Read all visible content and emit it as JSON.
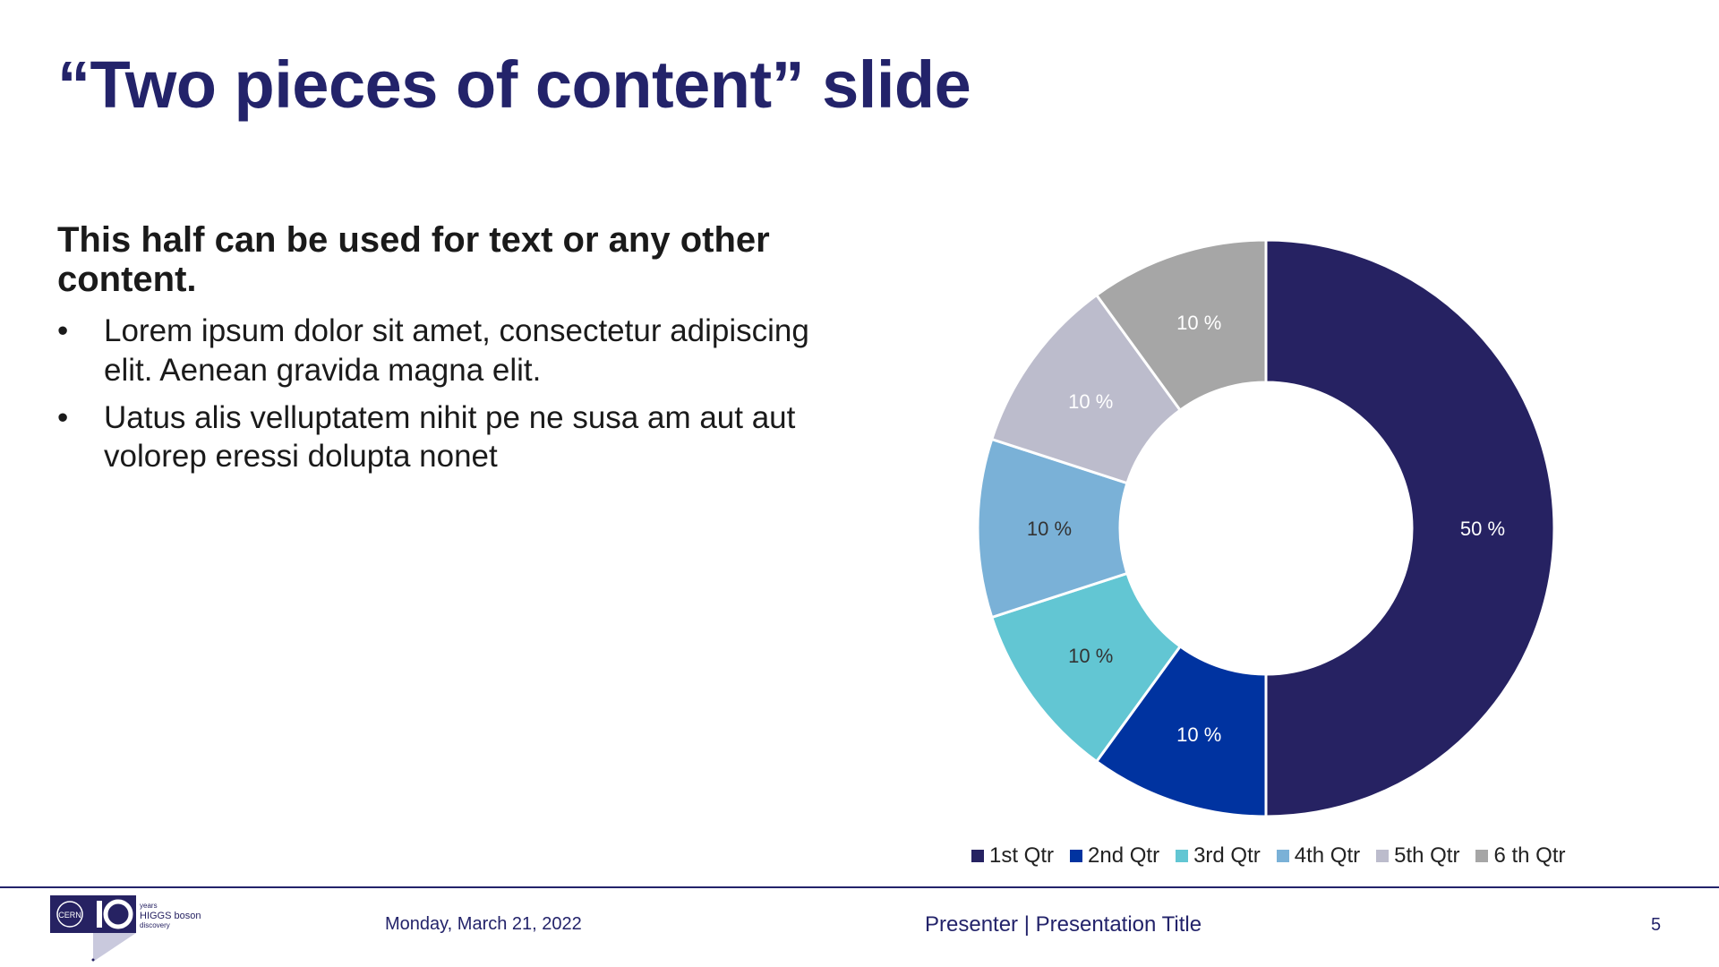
{
  "slide": {
    "title": "“Two pieces of content” slide",
    "content_heading": "This half can be used for text or any other content.",
    "bullets": [
      "Lorem ipsum dolor sit amet, consectetur adipiscing elit. Aenean gravida magna elit.",
      "Uatus alis velluptatem nihit pe ne susa am aut aut volorep eressi dolupta nonet"
    ],
    "bullet_glyph": "•"
  },
  "chart_data": {
    "type": "pie",
    "style": "donut",
    "categories": [
      "1st Qtr",
      "2nd Qtr",
      "3rd Qtr",
      "4th Qtr",
      "5th Qtr",
      "6 th Qtr"
    ],
    "values": [
      50,
      10,
      10,
      10,
      10,
      10
    ],
    "data_labels": [
      "50 %",
      "10 %",
      "10 %",
      "10 %",
      "10 %",
      "10 %"
    ],
    "colors": [
      "#262262",
      "#0033a0",
      "#62c6d3",
      "#7ab1d7",
      "#bcbccc",
      "#a6a6a6"
    ],
    "label_colors": [
      "#ffffff",
      "#ffffff",
      "#333333",
      "#333333",
      "#ffffff",
      "#ffffff"
    ],
    "legend_position": "bottom"
  },
  "footer": {
    "date": "Monday, March 21, 2022",
    "presenter": "Presenter | Presentation Title",
    "page_number": "5",
    "logo": {
      "icon": "cern-higgs-anniversary-logo",
      "text_cern": "CERN",
      "text_years": "years",
      "text_higgs": "HIGGS boson",
      "text_discovery": "discovery"
    }
  }
}
